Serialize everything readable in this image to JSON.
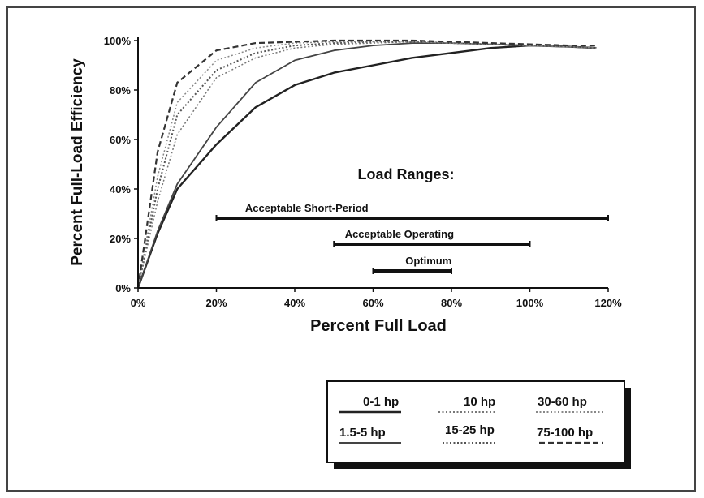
{
  "chart_data": {
    "type": "line",
    "xlabel": "Percent Full Load",
    "ylabel": "Percent Full-Load Efficiency",
    "xlim": [
      0,
      120
    ],
    "ylim": [
      0,
      100
    ],
    "x_ticks": [
      "0%",
      "20%",
      "40%",
      "60%",
      "80%",
      "100%",
      "120%"
    ],
    "y_ticks": [
      "0%",
      "20%",
      "40%",
      "60%",
      "80%",
      "100%"
    ],
    "grid": false,
    "series": [
      {
        "name": "0-1 hp",
        "color": "#222222",
        "style": "solid",
        "width": 2.4,
        "x": [
          0,
          5,
          10,
          20,
          30,
          40,
          50,
          60,
          70,
          80,
          90,
          100,
          110,
          117
        ],
        "y": [
          0,
          22,
          40,
          58,
          73,
          82,
          87,
          90,
          93,
          95,
          97,
          98,
          97.5,
          97
        ]
      },
      {
        "name": "1.5-5 hp",
        "color": "#444444",
        "style": "solid",
        "width": 1.8,
        "x": [
          0,
          5,
          10,
          20,
          30,
          40,
          50,
          60,
          70,
          80,
          90,
          100,
          110,
          117
        ],
        "y": [
          0,
          23,
          42,
          65,
          83,
          92,
          96,
          98,
          99,
          99,
          98.5,
          98,
          97.5,
          97
        ]
      },
      {
        "name": "10 hp",
        "color": "#777777",
        "style": "dot",
        "width": 1.5,
        "x": [
          0,
          5,
          10,
          20,
          30,
          40,
          50,
          60,
          70,
          80,
          90,
          100,
          110,
          117
        ],
        "y": [
          0,
          35,
          62,
          85,
          93,
          97,
          98.5,
          99,
          99.5,
          99,
          98.5,
          98,
          97.5,
          97
        ]
      },
      {
        "name": "15-25 hp",
        "color": "#555555",
        "style": "dot",
        "width": 2.0,
        "x": [
          0,
          5,
          10,
          20,
          30,
          40,
          50,
          60,
          70,
          80,
          90,
          100,
          110,
          117
        ],
        "y": [
          0,
          40,
          70,
          88,
          95,
          98,
          99,
          99.5,
          99.5,
          99,
          98.5,
          98,
          97.5,
          97
        ]
      },
      {
        "name": "30-60 hp",
        "color": "#888888",
        "style": "dot",
        "width": 1.5,
        "x": [
          0,
          5,
          10,
          20,
          30,
          40,
          50,
          60,
          70,
          80,
          90,
          100,
          110,
          117
        ],
        "y": [
          0,
          45,
          75,
          92,
          97,
          99,
          99.5,
          99.5,
          99.5,
          99,
          98.5,
          98,
          97.5,
          97
        ]
      },
      {
        "name": "75-100 hp",
        "color": "#333333",
        "style": "dash",
        "width": 2.2,
        "x": [
          0,
          5,
          10,
          20,
          30,
          40,
          50,
          60,
          70,
          80,
          90,
          100,
          110,
          117
        ],
        "y": [
          0,
          55,
          83,
          96,
          99,
          99.5,
          100,
          100,
          100,
          99.5,
          99,
          98.5,
          98,
          98
        ]
      }
    ],
    "load_ranges": {
      "title": "Load Ranges:",
      "ranges": [
        {
          "label": "Acceptable Short-Period",
          "start": 20,
          "end": 120
        },
        {
          "label": "Acceptable Operating",
          "start": 50,
          "end": 100
        },
        {
          "label": "Optimum",
          "start": 60,
          "end": 80
        }
      ]
    },
    "legend": {
      "placement": "bottom-right",
      "entries": [
        "0-1 hp",
        "10 hp",
        "30-60 hp",
        "1.5-5 hp",
        "15-25 hp",
        "75-100 hp"
      ]
    }
  }
}
